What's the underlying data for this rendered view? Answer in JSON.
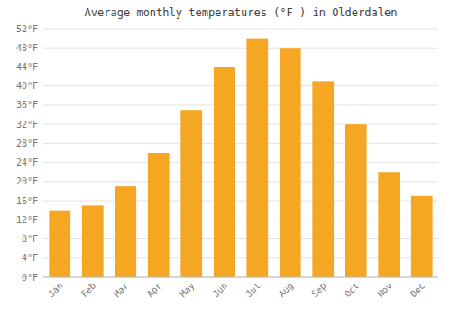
{
  "chart_data": {
    "type": "bar",
    "title": "Average monthly temperatures (°F ) in Olderdalen",
    "categories": [
      "Jan",
      "Feb",
      "Mar",
      "Apr",
      "May",
      "Jun",
      "Jul",
      "Aug",
      "Sep",
      "Oct",
      "Nov",
      "Dec"
    ],
    "values": [
      14,
      15,
      19,
      26,
      35,
      44,
      50,
      48,
      41,
      32,
      22,
      17
    ],
    "color": "#F5A623",
    "ylim": [
      0,
      52
    ],
    "yticks": [
      {
        "value": 0,
        "label": "0°F"
      },
      {
        "value": 4,
        "label": "4°F"
      },
      {
        "value": 8,
        "label": "8°F"
      },
      {
        "value": 12,
        "label": "12°F"
      },
      {
        "value": 16,
        "label": "16°F"
      },
      {
        "value": 20,
        "label": "20°F"
      },
      {
        "value": 24,
        "label": "24°F"
      },
      {
        "value": 28,
        "label": "28°F"
      },
      {
        "value": 32,
        "label": "32°F"
      },
      {
        "value": 36,
        "label": "36°F"
      },
      {
        "value": 40,
        "label": "40°F"
      },
      {
        "value": 44,
        "label": "44°F"
      },
      {
        "value": 48,
        "label": "48°F"
      },
      {
        "value": 52,
        "label": "52°F"
      }
    ],
    "grid": true
  }
}
